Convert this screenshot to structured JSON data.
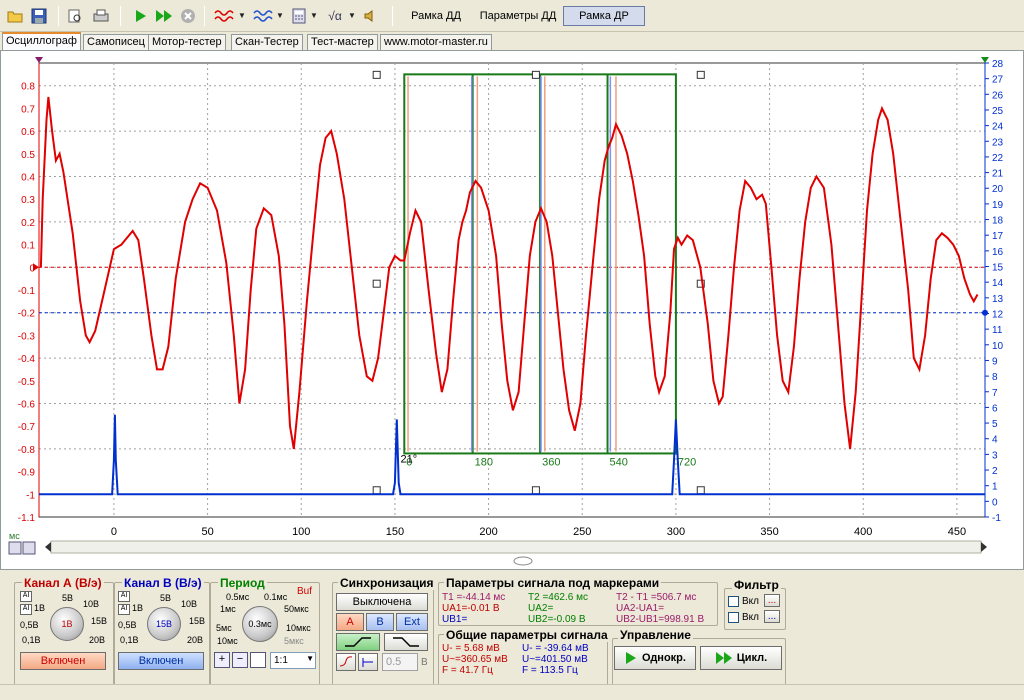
{
  "toolbar": {
    "icons": [
      "open-folder-icon",
      "save-icon",
      "print-preview-icon",
      "print-icon",
      "play-icon",
      "play-fast-icon",
      "stop-icon",
      "wave-a-icon",
      "wave-b-icon",
      "calculator-icon",
      "math-icon",
      "sound-icon"
    ],
    "frame_buttons": [
      "Рамка ДД",
      "Параметры ДД",
      "Рамка ДР"
    ],
    "active_frame": "Рамка ДР"
  },
  "tabs": [
    "Осциллограф",
    "Самописец",
    "Мотор-тестер",
    "Скан-Тестер",
    "Тест-мастер",
    "www.motor-master.ru"
  ],
  "active_tab": "Осциллограф",
  "colors": {
    "channel_a": "#e00000",
    "channel_b": "#0030d0",
    "frame": "#1a7a1a",
    "marker_orange": "#f0a080",
    "marker_blue": "#8090ff"
  },
  "chart_data": {
    "type": "line",
    "x_unit": "мс",
    "xlim": [
      -40,
      465
    ],
    "x_ticks": [
      "0",
      "50",
      "100",
      "150",
      "200",
      "250",
      "300",
      "350",
      "400",
      "450"
    ],
    "y_left_lim": [
      -1.1,
      0.9
    ],
    "y_left_ticks": [
      "0.8",
      "0.7",
      "0.6",
      "0.5",
      "0.4",
      "0.3",
      "0.2",
      "0.1",
      "0",
      "-0.1",
      "-0.2",
      "-0.3",
      "-0.4",
      "-0.5",
      "-0.6",
      "-0.7",
      "-0.8",
      "-0.9",
      "-1",
      "-1.1"
    ],
    "y_right_lim": [
      -1,
      28
    ],
    "y_right_ticks": [
      "28",
      "27",
      "26",
      "25",
      "24",
      "23",
      "22",
      "21",
      "20",
      "19",
      "18",
      "17",
      "16",
      "15",
      "14",
      "13",
      "12",
      "11",
      "10",
      "9",
      "8",
      "7",
      "6",
      "5",
      "4",
      "3",
      "2",
      "1",
      "0",
      "-1"
    ],
    "grid": true,
    "series": [
      {
        "channel": "A",
        "points": [
          [
            -39,
            0
          ],
          [
            -38,
            0.3
          ],
          [
            -36,
            0.65
          ],
          [
            -35,
            0.75
          ],
          [
            -33,
            0.6
          ],
          [
            -31,
            0.47
          ],
          [
            -29,
            0.5
          ],
          [
            -27,
            0.42
          ],
          [
            -22,
            0.15
          ],
          [
            -18,
            -0.15
          ],
          [
            -15,
            -0.3
          ],
          [
            -13,
            -0.33
          ],
          [
            -10,
            -0.28
          ],
          [
            -5,
            -0.1
          ],
          [
            0,
            0.08
          ],
          [
            4,
            0.1
          ],
          [
            8,
            0.14
          ],
          [
            10,
            0.16
          ],
          [
            13,
            0.12
          ],
          [
            16,
            -0.05
          ],
          [
            20,
            -0.3
          ],
          [
            23,
            -0.45
          ],
          [
            26,
            -0.45
          ],
          [
            29,
            -0.35
          ],
          [
            33,
            -0.05
          ],
          [
            38,
            0.2
          ],
          [
            42,
            0.3
          ],
          [
            46,
            0.37
          ],
          [
            50,
            0.35
          ],
          [
            55,
            0.25
          ],
          [
            60,
            0.02
          ],
          [
            64,
            -0.3
          ],
          [
            67,
            -0.6
          ],
          [
            70,
            -0.45
          ],
          [
            73,
            -0.1
          ],
          [
            76,
            0.17
          ],
          [
            80,
            0.26
          ],
          [
            84,
            0.23
          ],
          [
            88,
            0.05
          ],
          [
            91,
            -0.25
          ],
          [
            94,
            -0.7
          ],
          [
            96,
            -0.8
          ],
          [
            99,
            -0.55
          ],
          [
            103,
            -0.15
          ],
          [
            107,
            0.2
          ],
          [
            110,
            0.45
          ],
          [
            113,
            0.57
          ],
          [
            116,
            0.6
          ],
          [
            119,
            0.5
          ],
          [
            123,
            0.3
          ],
          [
            127,
            0
          ],
          [
            131,
            -0.3
          ],
          [
            135,
            -0.48
          ],
          [
            138,
            -0.5
          ],
          [
            141,
            -0.4
          ],
          [
            144,
            -0.2
          ],
          [
            147,
            0.0
          ],
          [
            150,
            0.05
          ],
          [
            153,
            0.03
          ],
          [
            155,
            0.03
          ],
          [
            158,
            0.15
          ],
          [
            161,
            0.25
          ],
          [
            164,
            0.2
          ],
          [
            168,
            -0.1
          ],
          [
            172,
            -0.38
          ],
          [
            175,
            -0.55
          ],
          [
            178,
            -0.45
          ],
          [
            181,
            -0.15
          ],
          [
            184,
            0.12
          ],
          [
            186,
            0.2
          ],
          [
            188,
            0.25
          ],
          [
            190,
            0.33
          ],
          [
            193,
            0.38
          ],
          [
            196,
            0.35
          ],
          [
            200,
            0.25
          ],
          [
            204,
            0.05
          ],
          [
            207,
            -0.25
          ],
          [
            210,
            -0.5
          ],
          [
            213,
            -0.63
          ],
          [
            216,
            -0.55
          ],
          [
            219,
            -0.25
          ],
          [
            222,
            0.05
          ],
          [
            225,
            0.2
          ],
          [
            228,
            0.26
          ],
          [
            231,
            0.2
          ],
          [
            234,
            0.05
          ],
          [
            237,
            -0.2
          ],
          [
            240,
            -0.45
          ],
          [
            243,
            -0.63
          ],
          [
            246,
            -0.72
          ],
          [
            249,
            -0.6
          ],
          [
            252,
            -0.3
          ],
          [
            256,
            0.05
          ],
          [
            259,
            0.3
          ],
          [
            262,
            0.47
          ],
          [
            264,
            0.53
          ],
          [
            266,
            0.57
          ],
          [
            268,
            0.63
          ],
          [
            271,
            0.58
          ],
          [
            274,
            0.5
          ],
          [
            277,
            0.38
          ],
          [
            280,
            0.23
          ],
          [
            283,
            0.05
          ],
          [
            286,
            -0.25
          ],
          [
            289,
            -0.48
          ],
          [
            291,
            -0.55
          ],
          [
            294,
            -0.48
          ],
          [
            297,
            -0.2
          ],
          [
            299,
            0.08
          ],
          [
            301,
            0.13
          ],
          [
            303,
            0.1
          ],
          [
            306,
            0.14
          ],
          [
            309,
            0.12
          ],
          [
            313,
            0.0
          ],
          [
            317,
            -0.25
          ],
          [
            320,
            -0.5
          ],
          [
            323,
            -0.6
          ],
          [
            325,
            -0.57
          ],
          [
            328,
            -0.3
          ],
          [
            331,
            0.0
          ],
          [
            334,
            0.25
          ],
          [
            337,
            0.38
          ],
          [
            340,
            0.35
          ],
          [
            343,
            0.3
          ],
          [
            346,
            0.32
          ],
          [
            348,
            0.28
          ],
          [
            351,
            0.0
          ],
          [
            354,
            -0.3
          ],
          [
            357,
            -0.5
          ],
          [
            360,
            -0.55
          ],
          [
            363,
            -0.35
          ],
          [
            366,
            -0.05
          ],
          [
            369,
            0.2
          ],
          [
            372,
            0.35
          ],
          [
            375,
            0.4
          ],
          [
            379,
            0.35
          ],
          [
            383,
            0.1
          ],
          [
            387,
            -0.3
          ],
          [
            390,
            -0.6
          ],
          [
            393,
            -0.8
          ],
          [
            396,
            -0.55
          ],
          [
            399,
            -0.15
          ],
          [
            402,
            0.25
          ],
          [
            405,
            0.5
          ],
          [
            408,
            0.65
          ],
          [
            410,
            0.7
          ],
          [
            413,
            0.65
          ],
          [
            416,
            0.5
          ],
          [
            420,
            0.2
          ],
          [
            424,
            -0.1
          ],
          [
            427,
            -0.4
          ],
          [
            430,
            -0.45
          ],
          [
            433,
            -0.3
          ],
          [
            436,
            -0.05
          ],
          [
            439,
            0.12
          ],
          [
            442,
            0.15
          ],
          [
            445,
            0.13
          ],
          [
            448,
            0.1
          ],
          [
            451,
            0.05
          ],
          [
            454,
            -0.05
          ],
          [
            457,
            -0.12
          ],
          [
            459,
            -0.15
          ],
          [
            461,
            -0.12
          ]
        ]
      },
      {
        "channel": "B",
        "points": [
          [
            -40,
            -1.0
          ],
          [
            -2,
            -1.0
          ],
          [
            -1,
            -1.0
          ],
          [
            0,
            -0.85
          ],
          [
            0.5,
            -0.65
          ],
          [
            1,
            -0.85
          ],
          [
            2,
            -1.0
          ],
          [
            149,
            -1.0
          ],
          [
            150,
            -0.95
          ],
          [
            151,
            -0.67
          ],
          [
            152,
            -0.95
          ],
          [
            153,
            -1.0
          ],
          [
            298,
            -1.0
          ],
          [
            299,
            -0.85
          ],
          [
            300,
            -0.67
          ],
          [
            301,
            -0.85
          ],
          [
            302,
            -1.0
          ],
          [
            465,
            -1.0
          ]
        ]
      }
    ],
    "frame": {
      "x_start": 155,
      "x_end": 300,
      "y_top": 0.85,
      "y_bottom": -0.82,
      "labels": [
        "0",
        "180",
        "360",
        "540",
        "720"
      ],
      "label_x": [
        155,
        191.5,
        227.5,
        263.5,
        300
      ]
    },
    "marker_lines": [
      {
        "x": 157,
        "color": "orange"
      },
      {
        "x": 191,
        "color": "blue"
      },
      {
        "x": 194,
        "color": "orange"
      },
      {
        "x": 228,
        "color": "blue"
      },
      {
        "x": 230,
        "color": "orange"
      },
      {
        "x": 265,
        "color": "blue"
      },
      {
        "x": 268,
        "color": "orange"
      }
    ],
    "annotation": "21°",
    "a_zero_level": 0,
    "b_zero_level": -0.2
  },
  "bottom": {
    "channel_a": {
      "title": "Канал А (В/э)",
      "scales": [
        "5В",
        "10В",
        "1В",
        "0,5В",
        "15В",
        "0,1В",
        "20В"
      ],
      "knob_value": "1В",
      "enabled": "Включен"
    },
    "channel_b": {
      "title": "Канал B (В/э)",
      "scales": [
        "5В",
        "10В",
        "1В",
        "0,5В",
        "15В",
        "0,1В",
        "20В"
      ],
      "knob_value": "15В",
      "enabled": "Включен"
    },
    "period": {
      "title": "Период",
      "buf": "Buf",
      "scales": [
        "0.5мс",
        "0.1мс",
        "1мс",
        "50мкс",
        "5мс",
        "10мкс",
        "10мс",
        "5мкс"
      ],
      "knob_value": "0.3мс",
      "zoom": "1:1"
    },
    "sync": {
      "title": "Синхронизация",
      "state": "Выключена",
      "channels": [
        "A",
        "B",
        "Ext"
      ],
      "level": "0.5",
      "unit": "В"
    },
    "marker_params": {
      "title": "Параметры сигнала под маркерами",
      "t1": "T1 =-44.14 мс",
      "ua1": "UA1=-0.01 В",
      "ub1": "UB1=",
      "t2": "T2 =462.6 мс",
      "ua2": "UA2=",
      "ub2": "UB2=-0.09 В",
      "dt": "T2 - T1 =506.7 мс",
      "dua": "UA2-UA1=",
      "dub": "UB2-UB1=998.91 В"
    },
    "general_params": {
      "title": "Общие параметры сигнала",
      "a_umin": "U- = 5.68 мВ",
      "a_umax": "U~=360.65 мВ",
      "a_freq": "F = 41.7 Гц",
      "b_umin": "U- = -39.64 мВ",
      "b_umax": "U~=401.50 мВ",
      "b_freq": "F = 113.5 Гц"
    },
    "filter": {
      "title": "Фильтр",
      "labels": [
        "Вкл",
        "Вкл"
      ],
      "more": "..."
    },
    "control": {
      "title": "Управление",
      "single": "Однокр.",
      "cycle": "Цикл."
    }
  }
}
